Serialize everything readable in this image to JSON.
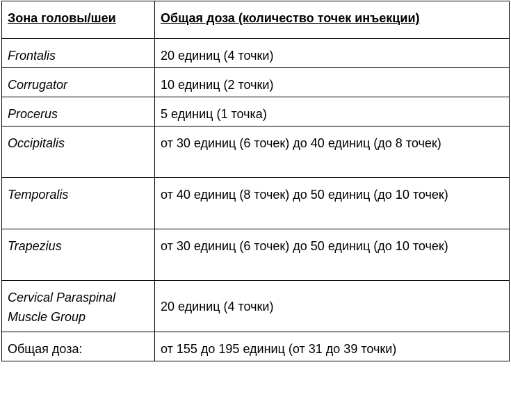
{
  "table": {
    "header": [
      "Зона головы/шеи",
      "Общая доза (количество точек инъекции)"
    ],
    "rows": [
      [
        "Frontalis",
        "20 единиц (4 точки)"
      ],
      [
        "Corrugator",
        "10 единиц (2 точки)"
      ],
      [
        "Procerus",
        "5 единиц (1 точка)"
      ],
      [
        "Occipitalis",
        "от 30 единиц (6 точек) до 40 единиц (до 8 точек)"
      ],
      [
        "Temporalis",
        "от 40 единиц (8 точек) до 50 единиц (до 10 точек)"
      ],
      [
        "Trapezius",
        "от 30 единиц (6 точек) до 50 единиц (до 10 точек)"
      ],
      [
        "Cervical Paraspinal Muscle Group",
        "20 единиц (4 точки)"
      ],
      [
        "Общая доза:",
        "от 155 до 195 единиц (от 31 до 39 точки)"
      ]
    ]
  }
}
